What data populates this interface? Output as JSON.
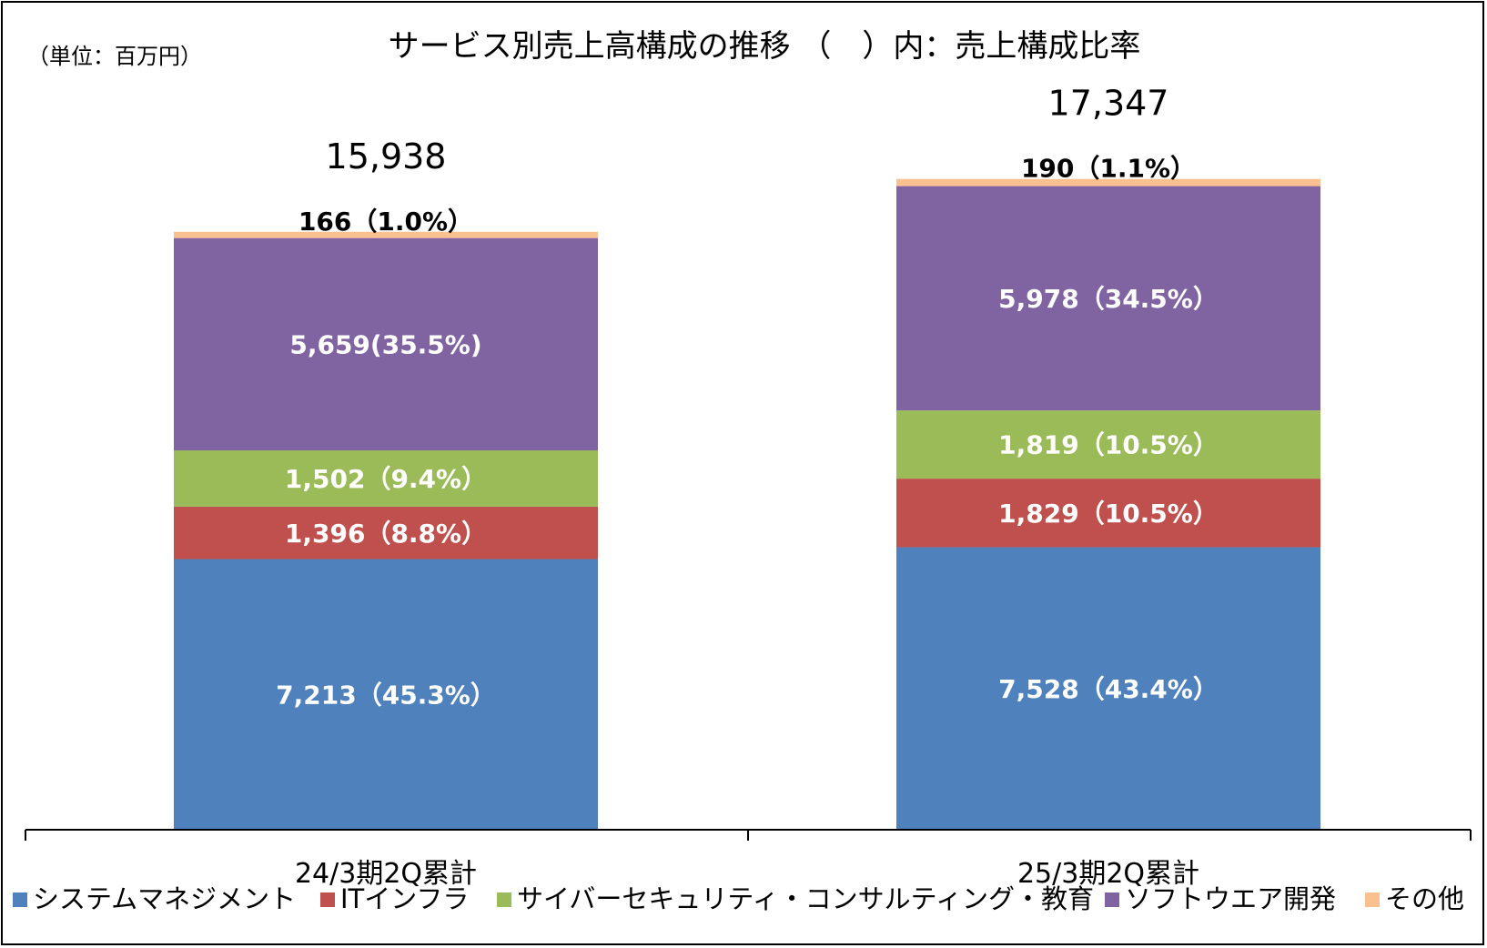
{
  "chart_data": {
    "type": "bar",
    "stacked": true,
    "title": "サービス別売上高構成の推移 （　）内：売上構成比率",
    "unit_note": "（単位：百万円）",
    "categories": [
      "24/3期2Q累計",
      "25/3期2Q累計"
    ],
    "totals": [
      "15,938",
      "17,347"
    ],
    "series": [
      {
        "name": "システムマネジメント",
        "color": "#4F81BD",
        "values": [
          7213,
          7528
        ],
        "labels": [
          "7,213（45.3%）",
          "7,528（43.4%）"
        ]
      },
      {
        "name": "ITインフラ",
        "color": "#C0504D",
        "values": [
          1396,
          1829
        ],
        "labels": [
          "1,396（8.8%）",
          "1,829（10.5%）"
        ]
      },
      {
        "name": "サイバーセキュリティ・コンサルティング・教育",
        "color": "#9BBB59",
        "values": [
          1502,
          1819
        ],
        "labels": [
          "1,502（9.4%）",
          "1,819（10.5%）"
        ]
      },
      {
        "name": "ソフトウエア開発",
        "color": "#8064A2",
        "values": [
          5659,
          5978
        ],
        "labels": [
          "5,659(35.5%)",
          "5,978（34.5%）"
        ]
      },
      {
        "name": "その他",
        "color": "#FAC090",
        "values": [
          166,
          190
        ],
        "labels": [
          "166（1.0%）",
          "190（1.1%）"
        ]
      }
    ],
    "ylim": [
      0,
      18000
    ],
    "grid": false,
    "legend_position": "bottom"
  }
}
